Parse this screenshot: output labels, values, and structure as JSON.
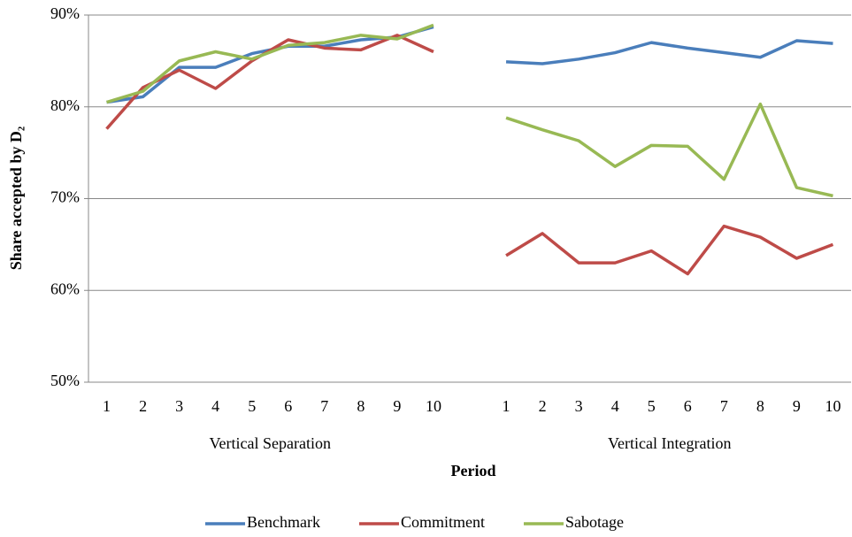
{
  "chart_data": {
    "type": "line",
    "y_label": "Share accepted by D₂",
    "x_label": "Period",
    "categories": [
      "1",
      "2",
      "3",
      "4",
      "5",
      "6",
      "7",
      "8",
      "9",
      "10",
      null,
      "1",
      "2",
      "3",
      "4",
      "5",
      "6",
      "7",
      "8",
      "9",
      "10"
    ],
    "category_groups": [
      "Vertical Separation",
      "Vertical Integration"
    ],
    "ylim": [
      50,
      90
    ],
    "yticks": [
      {
        "value": 50,
        "label": "50%"
      },
      {
        "value": 60,
        "label": "60%"
      },
      {
        "value": 70,
        "label": "70%"
      },
      {
        "value": 80,
        "label": "80%"
      },
      {
        "value": 90,
        "label": "90%"
      }
    ],
    "grid": true,
    "legend": "bottom",
    "series": [
      {
        "name": "Benchmark",
        "color": "#4a7ebb",
        "values": [
          80.5,
          81.1,
          84.3,
          84.3,
          85.8,
          86.6,
          86.6,
          87.3,
          87.6,
          88.7,
          null,
          84.9,
          84.7,
          85.2,
          85.9,
          87.0,
          86.4,
          85.9,
          85.4,
          87.2,
          86.9
        ]
      },
      {
        "name": "Commitment",
        "color": "#be4b48",
        "values": [
          77.6,
          82.1,
          84.0,
          82.0,
          85.0,
          87.3,
          86.4,
          86.2,
          87.8,
          86.0,
          null,
          63.8,
          66.2,
          63.0,
          63.0,
          64.3,
          61.8,
          67.0,
          65.8,
          63.5,
          65.0
        ]
      },
      {
        "name": "Sabotage",
        "color": "#98b954",
        "values": [
          80.5,
          81.7,
          85.0,
          86.0,
          85.2,
          86.7,
          87.0,
          87.8,
          87.4,
          88.9,
          null,
          78.8,
          77.5,
          76.3,
          73.5,
          75.8,
          75.7,
          72.1,
          80.3,
          71.2,
          70.3
        ]
      }
    ]
  }
}
